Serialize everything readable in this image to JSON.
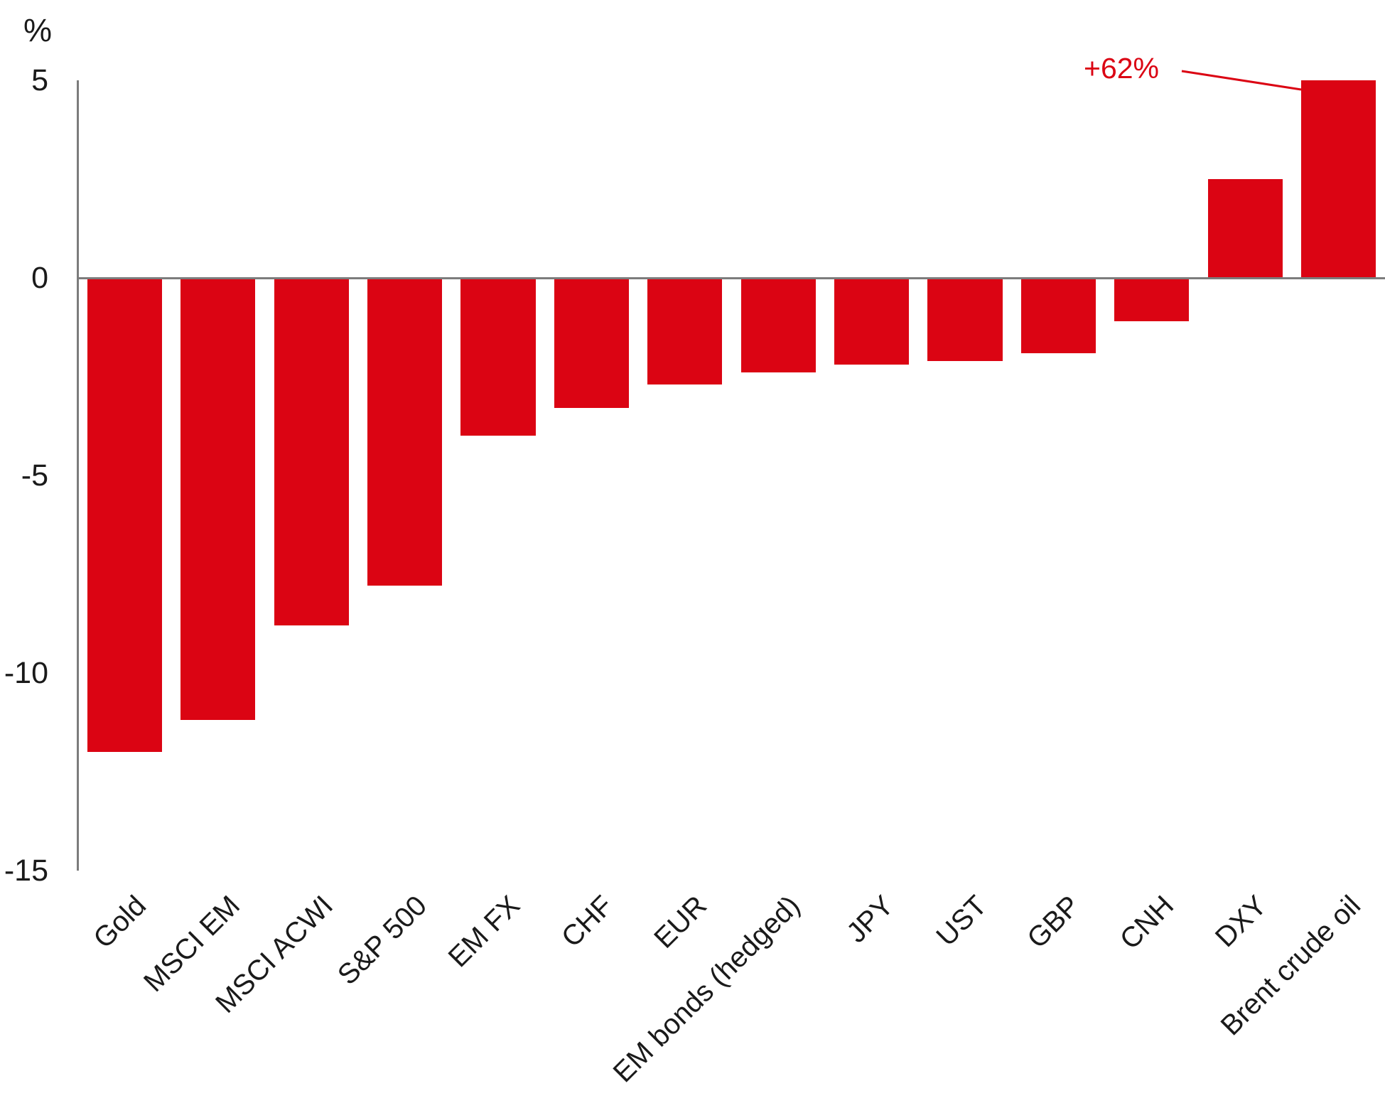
{
  "chart_data": {
    "type": "bar",
    "title": "",
    "unit_label": "%",
    "categories": [
      "Gold",
      "MSCI EM",
      "MSCI ACWI",
      "S&P 500",
      "EM FX",
      "CHF",
      "EUR",
      "EM bonds (hedged)",
      "JPY",
      "UST",
      "GBP",
      "CNH",
      "DXY",
      "Brent crude oil"
    ],
    "values": [
      -12.0,
      -11.2,
      -8.8,
      -7.8,
      -4.0,
      -3.3,
      -2.7,
      -2.4,
      -2.2,
      -2.1,
      -1.9,
      -1.1,
      2.5,
      62
    ],
    "ylim": [
      -15,
      5
    ],
    "ytick_labels": [
      "5",
      "0",
      "-5",
      "-10",
      "-15"
    ],
    "ytick_values": [
      5,
      0,
      -5,
      -10,
      -15
    ],
    "grid": false,
    "legend": false,
    "xlabel": "",
    "ylabel": "",
    "bar_color": "#db0413",
    "axis_color": "#7c7c7c",
    "text_color": "#1a1a1a",
    "annotation": {
      "label": "+62%",
      "target_category": "Brent crude oil",
      "bar_display_clipped_at": 5
    }
  }
}
